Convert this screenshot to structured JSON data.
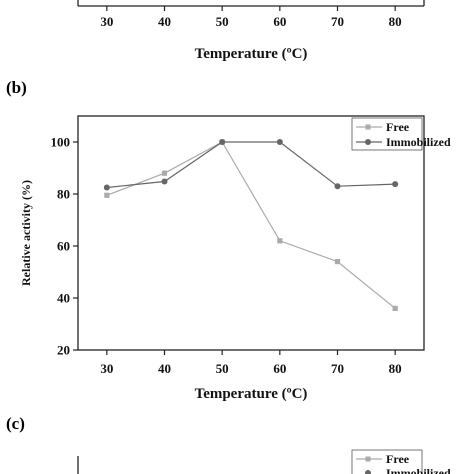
{
  "panels": {
    "a": {
      "label": ""
    },
    "b": {
      "label": "(b)"
    },
    "c": {
      "label": "(c)"
    }
  },
  "chart_data": [
    {
      "panel": "a",
      "type": "line",
      "title": "",
      "xlabel": "Temperature (ºC)",
      "ylabel": "",
      "x": [
        30,
        40,
        50,
        60,
        70,
        80
      ],
      "xlim": [
        25,
        85
      ],
      "series": []
    },
    {
      "panel": "b",
      "type": "line",
      "title": "",
      "xlabel": "Temperature (ºC)",
      "ylabel": "Relative activity (%)",
      "x": [
        30,
        40,
        50,
        60,
        70,
        80
      ],
      "xlim": [
        25,
        85
      ],
      "ylim": [
        20,
        110
      ],
      "yticks": [
        20,
        40,
        60,
        80,
        100
      ],
      "legend": "top-right",
      "grid": false,
      "series": [
        {
          "name": "Free",
          "marker": "square",
          "color": "#aaaaaa",
          "values": [
            79.5,
            88,
            100,
            62,
            54,
            36
          ]
        },
        {
          "name": "Immobilized",
          "marker": "circle",
          "color": "#666666",
          "values": [
            82.5,
            84.8,
            100,
            100,
            83,
            83.8
          ]
        }
      ]
    },
    {
      "panel": "c",
      "type": "line",
      "title": "",
      "xlabel": "",
      "ylabel": "",
      "legend": "top-right",
      "series": [
        {
          "name": "Free",
          "marker": "square",
          "color": "#aaaaaa",
          "values": []
        },
        {
          "name": "Immobilized",
          "marker": "circle",
          "color": "#666666",
          "values": []
        }
      ]
    }
  ]
}
